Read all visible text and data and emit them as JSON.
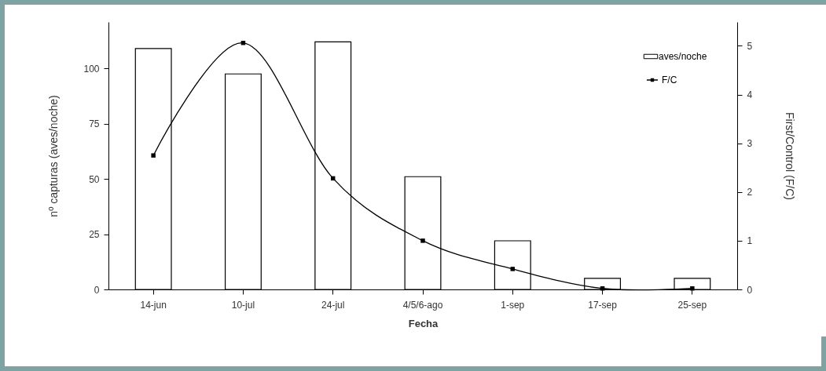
{
  "chart_data": {
    "type": "bar",
    "xlabel": "Fecha",
    "ylabel": "nº capturas (aves/noche)",
    "y2label": "First/Control (F/C)",
    "categories": [
      "14-jun",
      "10-jul",
      "24-jul",
      "4/5/6-ago",
      "1-sep",
      "17-sep",
      "25-sep"
    ],
    "series": [
      {
        "name": "aves/noche",
        "color": "#ffffff",
        "values": [
          109,
          97.5,
          112,
          51,
          22,
          5,
          5
        ]
      },
      {
        "name": "F/C",
        "type": "line",
        "axis": "y2",
        "color": "#000000",
        "values": [
          2.75,
          5.06,
          2.28,
          1.0,
          0.42,
          0.02,
          0.02
        ]
      }
    ],
    "ylim": [
      0,
      121
    ],
    "yticks": [
      0,
      25,
      50,
      75,
      100
    ],
    "y2lim": [
      0,
      5.49
    ],
    "y2ticks": [
      0,
      1,
      2,
      3,
      4,
      5
    ],
    "grid": false,
    "legend": "top right",
    "marker": "square"
  }
}
